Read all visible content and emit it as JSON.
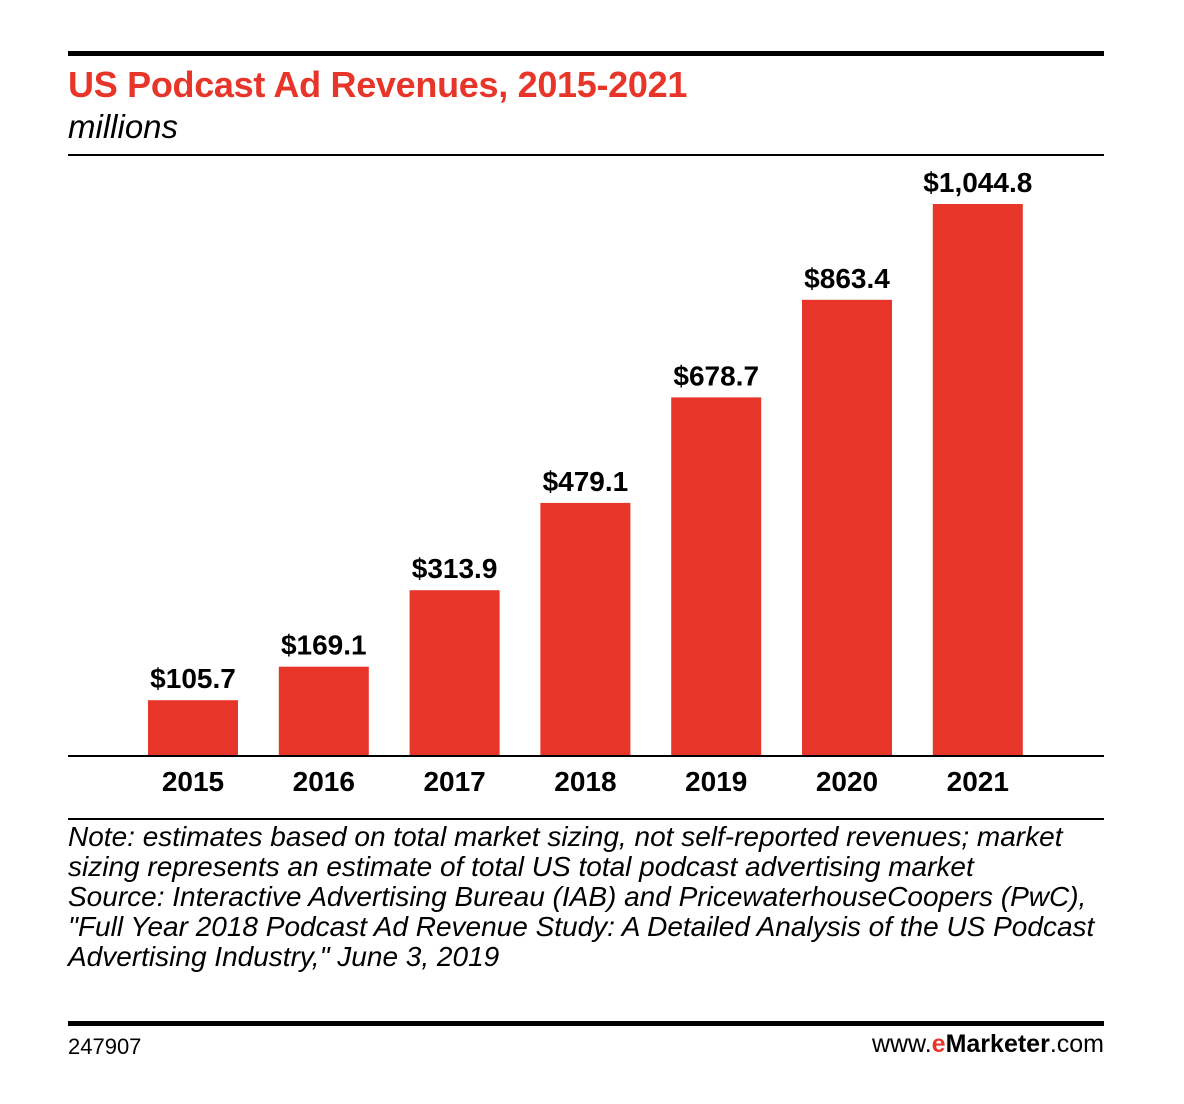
{
  "header": {
    "title": "US Podcast Ad Revenues, 2015-2021",
    "subtitle": "millions"
  },
  "colors": {
    "bar": "#e8352a",
    "title": "#e8352a",
    "axis": "#000000"
  },
  "chart_data": {
    "type": "bar",
    "title": "US Podcast Ad Revenues, 2015-2021",
    "subtitle": "millions",
    "xlabel": "",
    "ylabel": "",
    "categories": [
      "2015",
      "2016",
      "2017",
      "2018",
      "2019",
      "2020",
      "2021"
    ],
    "values": [
      105.7,
      169.1,
      313.9,
      479.1,
      678.7,
      863.4,
      1044.8
    ],
    "value_labels": [
      "$105.7",
      "$169.1",
      "$313.9",
      "$479.1",
      "$678.7",
      "$863.4",
      "$1,044.8"
    ],
    "ylim": [
      0,
      1044.8
    ],
    "grid": false,
    "legend": "none"
  },
  "notes": {
    "note": "Note: estimates based on total market sizing, not self-reported revenues; market sizing represents an estimate of total US total podcast advertising market",
    "source": "Source: Interactive Advertising Bureau (IAB) and PricewaterhouseCoopers (PwC), \"Full Year 2018 Podcast Ad Revenue Study: A Detailed Analysis of the US Podcast Advertising Industry,\" June 3, 2019"
  },
  "footer": {
    "chart_id": "247907",
    "brand_prefix": "www.",
    "brand_e": "e",
    "brand_main": "Marketer",
    "brand_suffix": ".com"
  }
}
